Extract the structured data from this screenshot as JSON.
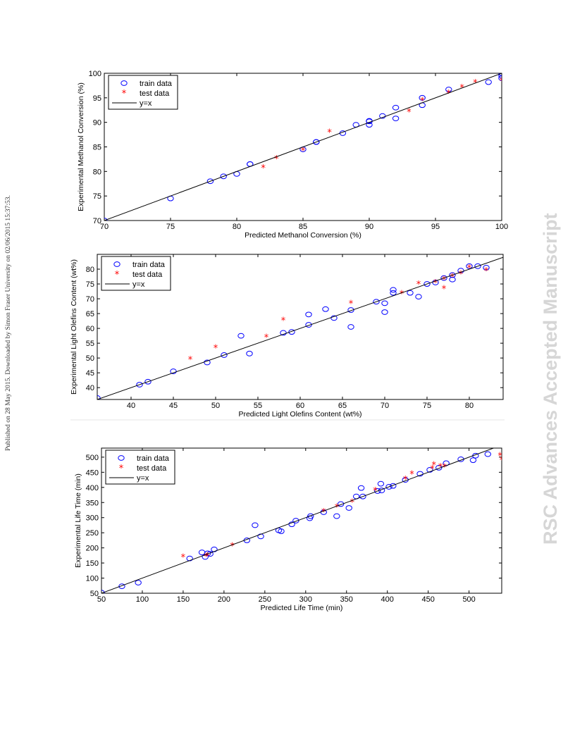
{
  "page": {
    "side_note": "Published on 28 May 2015. Downloaded by Simon Fraser University on 02/06/2015 15:37:53.",
    "watermark": "RSC Advances Accepted Manuscript",
    "colors": {
      "train": "#0000ff",
      "test": "#ff0000",
      "fit_line": "#000000"
    }
  },
  "chart_data": [
    {
      "type": "scatter",
      "xlabel": "Predicted Methanol Conversion (%)",
      "ylabel": "Experimental Methanol Conversion (%)",
      "xlim": [
        70,
        100
      ],
      "ylim": [
        70,
        100
      ],
      "xticks": [
        "70",
        "75",
        "80",
        "85",
        "90",
        "95",
        "100"
      ],
      "yticks": [
        "70",
        "75",
        "80",
        "85",
        "90",
        "95",
        "100"
      ],
      "legend": {
        "position": "top-left",
        "entries": [
          "train data",
          "test data",
          "y=x"
        ]
      },
      "series": [
        {
          "name": "train data",
          "marker": "circle",
          "x": [
            70,
            75,
            78,
            79,
            80,
            81,
            81,
            85,
            86,
            86,
            88,
            89,
            90,
            90,
            90,
            91,
            92,
            92,
            94,
            94,
            96,
            99,
            100,
            100,
            100
          ],
          "y": [
            70,
            74.5,
            78,
            79,
            79.5,
            81.5,
            81.5,
            84.5,
            86,
            86,
            87.8,
            89.5,
            89.5,
            90.3,
            90.2,
            91.3,
            90.8,
            93,
            93.5,
            95,
            96.7,
            98.2,
            99.5,
            100,
            99
          ]
        },
        {
          "name": "test data",
          "marker": "star",
          "x": [
            82,
            83,
            85,
            87,
            93,
            94,
            96,
            97,
            98,
            100
          ],
          "y": [
            80.8,
            82.6,
            84.3,
            88,
            92.2,
            94.5,
            96,
            97.1,
            98.1,
            98.5
          ]
        },
        {
          "name": "y=x",
          "type": "line",
          "x": [
            70,
            100
          ],
          "y": [
            70,
            100
          ]
        }
      ]
    },
    {
      "type": "scatter",
      "xlabel": "Predicted Light Olefins Content (wt%)",
      "ylabel": "Experimental Light Olefins Content (wt%)",
      "xlim": [
        36,
        84
      ],
      "ylim": [
        36,
        85
      ],
      "xticks": [
        "40",
        "45",
        "50",
        "55",
        "60",
        "65",
        "70",
        "75",
        "80"
      ],
      "yticks": [
        "40",
        "45",
        "50",
        "55",
        "60",
        "65",
        "70",
        "75",
        "80"
      ],
      "legend": {
        "position": "top-left",
        "entries": [
          "train data",
          "test data",
          "y=x"
        ]
      },
      "series": [
        {
          "name": "train data",
          "marker": "circle",
          "x": [
            36,
            41,
            42,
            45,
            49,
            51,
            53,
            54,
            58,
            59,
            61,
            61,
            63,
            64,
            66,
            66,
            69,
            70,
            70,
            71,
            71,
            73,
            74,
            75,
            76,
            77,
            78,
            78,
            79,
            80,
            81,
            82
          ],
          "y": [
            36.5,
            41,
            42,
            45.5,
            48.5,
            51,
            57.5,
            51.5,
            58.5,
            58.8,
            61.2,
            64.7,
            66.5,
            63.5,
            66.2,
            60.5,
            69,
            65.5,
            68.5,
            72,
            73,
            72,
            70.7,
            75,
            75.5,
            77,
            76.5,
            78,
            79.5,
            81,
            81,
            80.5
          ]
        },
        {
          "name": "test data",
          "marker": "star",
          "x": [
            47,
            50,
            56,
            58,
            66,
            72,
            74,
            76,
            77,
            77,
            78,
            79,
            80,
            82
          ],
          "y": [
            49.5,
            53.5,
            57,
            62.8,
            68.5,
            71.8,
            75,
            75.5,
            76.5,
            73.5,
            77.5,
            78.5,
            80.5,
            79.5
          ]
        },
        {
          "name": "y=x",
          "type": "line",
          "x": [
            36,
            84
          ],
          "y": [
            36,
            84
          ]
        }
      ]
    },
    {
      "type": "scatter",
      "xlabel": "Predicted Life Time (min)",
      "ylabel": "Experimental Life Time (min)",
      "xlim": [
        50,
        540
      ],
      "ylim": [
        50,
        530
      ],
      "xticks": [
        "50",
        "100",
        "150",
        "200",
        "250",
        "300",
        "350",
        "400",
        "450",
        "500"
      ],
      "yticks": [
        "50",
        "100",
        "150",
        "200",
        "250",
        "300",
        "350",
        "400",
        "450",
        "500"
      ],
      "legend": {
        "position": "top-left",
        "entries": [
          "train data",
          "test data",
          "y=x"
        ]
      },
      "series": [
        {
          "name": "train data",
          "marker": "circle",
          "x": [
            50,
            75,
            95,
            158,
            173,
            177,
            180,
            183,
            188,
            228,
            238,
            245,
            267,
            270,
            283,
            288,
            305,
            306,
            322,
            338,
            343,
            353,
            362,
            368,
            370,
            388,
            392,
            393,
            402,
            407,
            422,
            440,
            452,
            463,
            472,
            490,
            505,
            508,
            523
          ],
          "y": [
            52,
            73,
            85,
            165,
            185,
            170,
            182,
            180,
            195,
            225,
            275,
            238,
            258,
            255,
            278,
            290,
            298,
            305,
            318,
            305,
            345,
            332,
            370,
            398,
            370,
            388,
            412,
            390,
            402,
            405,
            425,
            445,
            458,
            465,
            480,
            493,
            490,
            505,
            510
          ]
        },
        {
          "name": "test data",
          "marker": "star",
          "x": [
            150,
            178,
            180,
            210,
            322,
            338,
            357,
            385,
            422,
            430,
            455,
            457,
            465,
            470,
            538,
            540
          ],
          "y": [
            170,
            172,
            175,
            207,
            320,
            335,
            352,
            390,
            428,
            445,
            462,
            475,
            470,
            468,
            505,
            492
          ]
        },
        {
          "name": "y=x",
          "type": "line",
          "x": [
            50,
            540
          ],
          "y": [
            50,
            540
          ]
        }
      ]
    }
  ]
}
